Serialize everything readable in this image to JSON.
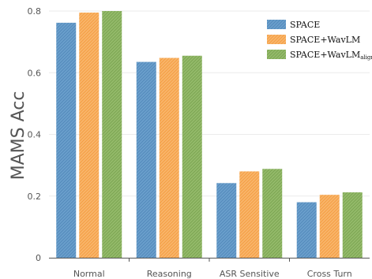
{
  "chart_data": {
    "type": "bar",
    "categories": [
      "Normal",
      "Reasoning",
      "ASR Sensitive",
      "Cross Turn"
    ],
    "series": [
      {
        "name": "SPACE",
        "name_sub": "",
        "values": [
          0.762,
          0.635,
          0.242,
          0.18
        ],
        "color": "#6a9fcc",
        "hatch": "#4f86b8"
      },
      {
        "name": "SPACE+WavLM",
        "name_sub": "",
        "values": [
          0.795,
          0.648,
          0.28,
          0.204
        ],
        "color": "#f9b56a",
        "hatch": "#f39a3c"
      },
      {
        "name": "SPACE+WavLM",
        "name_sub": "align",
        "values": [
          0.8,
          0.655,
          0.288,
          0.212
        ],
        "color": "#94ba6a",
        "hatch": "#77a14d"
      }
    ],
    "yticks": [
      "0",
      "0.2",
      "0.4",
      "0.6",
      "0.8"
    ],
    "ylim": [
      0,
      0.8
    ],
    "ylabel": "MAMS Acc",
    "xlabel": "",
    "title": "",
    "legend_position": "top-right",
    "grid": "horizontal"
  }
}
